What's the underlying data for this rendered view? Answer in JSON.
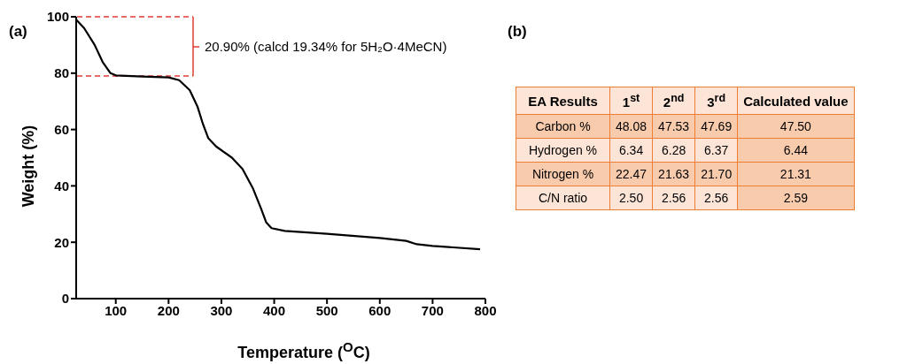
{
  "chart_data": [
    {
      "type": "line",
      "title": "(a)",
      "xlabel": "Temperature ($^{O}$C)",
      "ylabel": "Weight (%)",
      "x": [
        25,
        40,
        60,
        75,
        90,
        100,
        150,
        200,
        220,
        240,
        255,
        265,
        275,
        290,
        320,
        340,
        360,
        375,
        385,
        395,
        420,
        500,
        600,
        650,
        670,
        700,
        790
      ],
      "series": [
        {
          "color": "#000000",
          "values": [
            99,
            96,
            90,
            84,
            80,
            79.2,
            78.8,
            78.5,
            77.5,
            74,
            68,
            62,
            57,
            54,
            50,
            46,
            39,
            32,
            27,
            25,
            24,
            23,
            21.5,
            20.5,
            19.3,
            18.7,
            17.5
          ]
        }
      ],
      "xlim": [
        25,
        800
      ],
      "xticks": [
        100,
        200,
        300,
        400,
        500,
        600,
        700,
        800
      ],
      "ylim": [
        0,
        100
      ],
      "yticks": [
        0,
        20,
        40,
        60,
        80,
        100
      ],
      "marker": "none",
      "line_style": "solid",
      "annotations": [
        "20.90% (calcd 19.34% for 5H₂O·4MeCN)"
      ]
    },
    {
      "type": "other",
      "title": "(b)",
      "categories": [
        "EA Results",
        "1$^{st}$",
        "2$^{nd}$",
        "3$^{rd}$",
        "Calculated value"
      ],
      "y_categories": [
        "Carbon %",
        "Hydrogen %",
        "Nitrogen %",
        "C/N ratio"
      ],
      "cell_labels": [
        [
          "48.08",
          "47.53",
          "47.69",
          "47.50"
        ],
        [
          "6.34",
          "6.28",
          "6.37",
          "6.44"
        ],
        [
          "22.47",
          "21.63",
          "21.70",
          "21.31"
        ],
        [
          "2.50",
          "2.56",
          "2.56",
          "2.59"
        ]
      ]
    }
  ]
}
